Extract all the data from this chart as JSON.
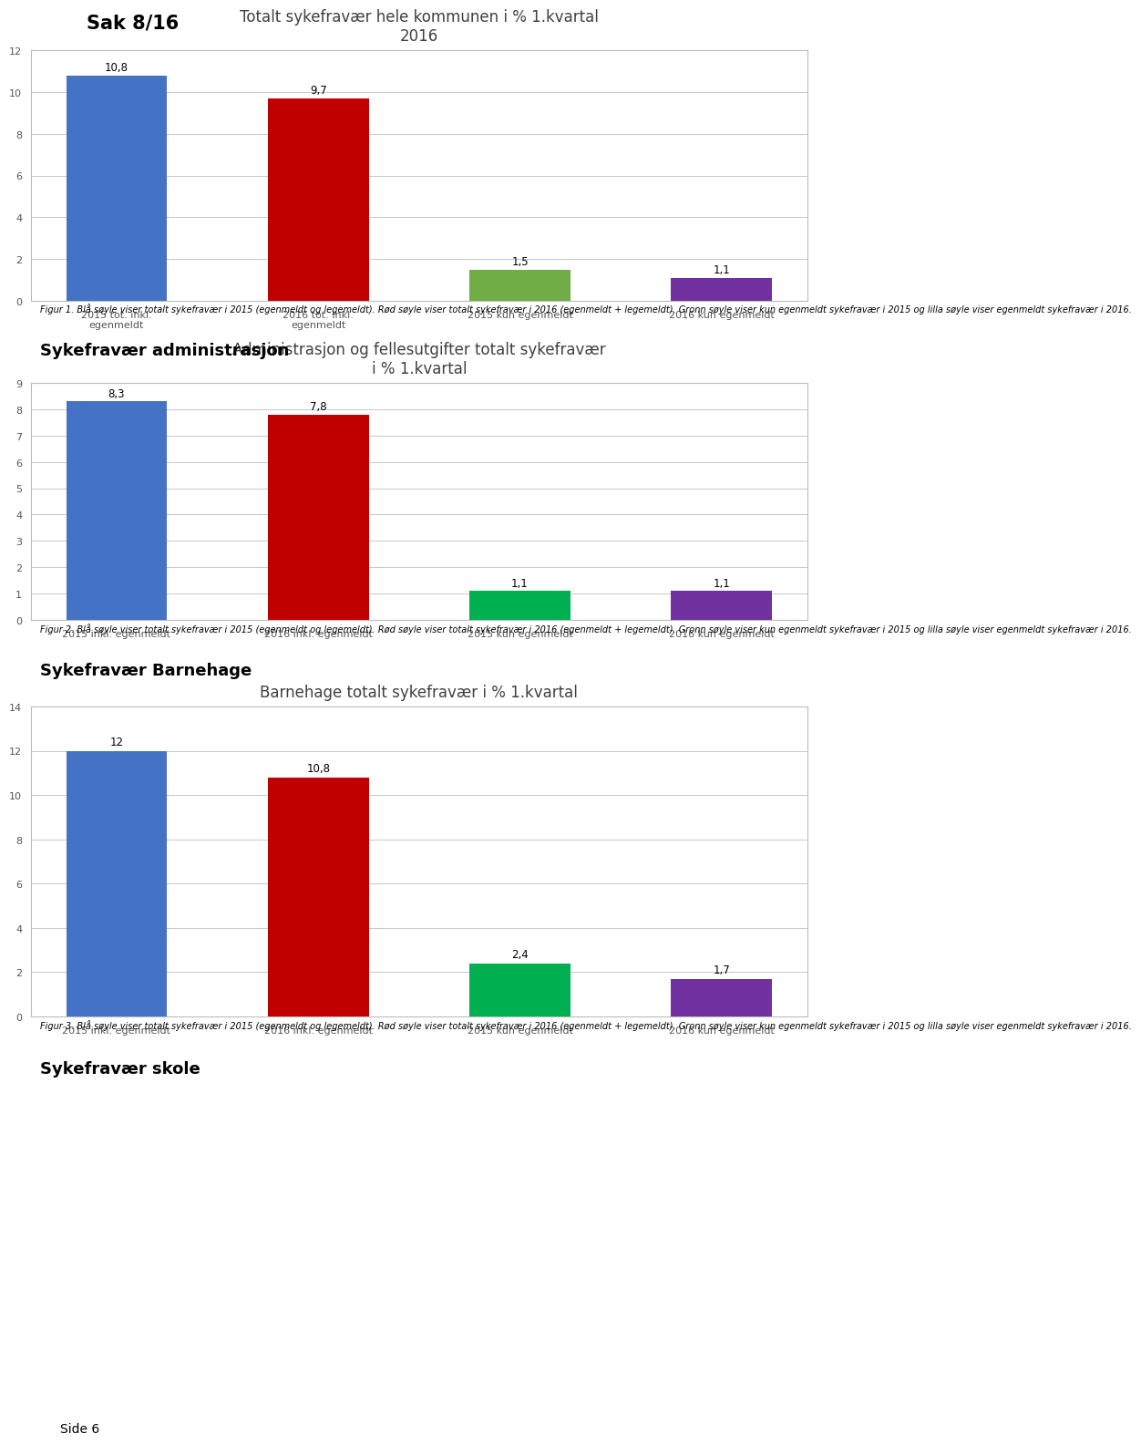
{
  "page_title": "Sak 8/16",
  "charts": [
    {
      "title": "Totalt sykefravær hele kommunen i % 1.kvartal\n2016",
      "values": [
        10.8,
        9.7,
        1.5,
        1.1
      ],
      "colors": [
        "#4472C4",
        "#C00000",
        "#70AD47",
        "#7030A0"
      ],
      "categories": [
        "2015 tot. inkl.\negenmeldt",
        "2016 tot. Inkl.\negenmeldt",
        "2015 kun egenmeldt",
        "2016 kun egenmeldt"
      ],
      "ylim": [
        0,
        12
      ],
      "yticks": [
        0,
        2,
        4,
        6,
        8,
        10,
        12
      ],
      "caption": "Figur 1. Blå søyle viser totalt sykefravær i 2015 (egenmeldt og legemeldt). Rød søyle viser totalt sykefravær i 2016 (egenmeldt + legemeldt). Gronn søyle viser kun egenmeldt sykefravær i 2015 og lilla søyle viser egenmeldt sykefravær i 2016."
    },
    {
      "title": "Administrasjon og fellesutgifter totalt sykefravær\ni % 1.kvartal",
      "values": [
        8.3,
        7.8,
        1.1,
        1.1
      ],
      "colors": [
        "#4472C4",
        "#C00000",
        "#00B050",
        "#7030A0"
      ],
      "categories": [
        "2015 inkl. egenmeldt",
        "2016 inkl. egenmeldt",
        "2015 kun egenmeldt",
        "2016 kun egenmeldt"
      ],
      "ylim": [
        0,
        9
      ],
      "yticks": [
        0,
        1,
        2,
        3,
        4,
        5,
        6,
        7,
        8,
        9
      ],
      "caption": "Figur 2. Blå søyle viser totalt sykefravær i 2015 (egenmeldt og legemeldt). Rød søyle viser totalt sykefravær i 2016 (egenmeldt + legemeldt). Gronn søyle viser kun egenmeldt sykefravær i 2015 og lilla søyle viser egenmeldt sykefravær i 2016."
    },
    {
      "title": "Barnehage totalt sykefravær i % 1.kvartal",
      "values": [
        12,
        10.8,
        2.4,
        1.7
      ],
      "colors": [
        "#4472C4",
        "#C00000",
        "#00B050",
        "#7030A0"
      ],
      "categories": [
        "2015 inkl. egenmeldt",
        "2016 inkl. egenmeldt",
        "2015 kun egenmeldt",
        "2016 kun egenmeldt"
      ],
      "ylim": [
        0,
        14
      ],
      "yticks": [
        0,
        2,
        4,
        6,
        8,
        10,
        12,
        14
      ],
      "caption": "Figur 3. Blå søyle viser totalt sykefravær i 2015 (egenmeldt og legemeldt). Rød søyle viser totalt sykefravær i 2016 (egenmeldt + legemeldt). Gronn søyle viser kun egenmeldt sykefravær i 2015 og lilla søyle viser egenmeldt sykefravær i 2016."
    }
  ],
  "section_titles": [
    "Sykefravær administrasjon",
    "Sykefravær Barnehage",
    "Sykefravær skole"
  ],
  "chart_bg": "#FFFFFF",
  "grid_color": "#C8C8C8",
  "bar_width": 0.5,
  "value_label_fontsize": 8.5,
  "axis_label_fontsize": 8,
  "title_fontsize": 12,
  "caption_fontsize": 7,
  "section_title_fontsize": 13,
  "page_title_fontsize": 15
}
